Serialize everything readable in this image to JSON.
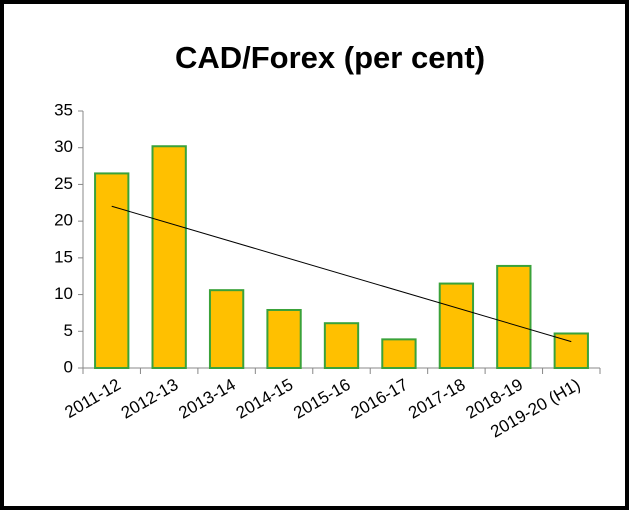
{
  "chart_data": {
    "type": "bar",
    "title": "CAD/Forex (per cent)",
    "categories": [
      "2011-12",
      "2012-13",
      "2013-14",
      "2014-15",
      "2015-16",
      "2016-17",
      "2017-18",
      "2018-19",
      "2019-20 (H1)"
    ],
    "values": [
      26.5,
      30.2,
      10.6,
      7.9,
      6.1,
      3.9,
      11.5,
      13.9,
      4.7
    ],
    "color": "#ffc000",
    "edge_color": "#3aa23a",
    "ylim": [
      0,
      35
    ],
    "yticks": [
      0,
      5,
      10,
      15,
      20,
      25,
      30,
      35
    ],
    "trendline": "linear",
    "grid": false
  }
}
